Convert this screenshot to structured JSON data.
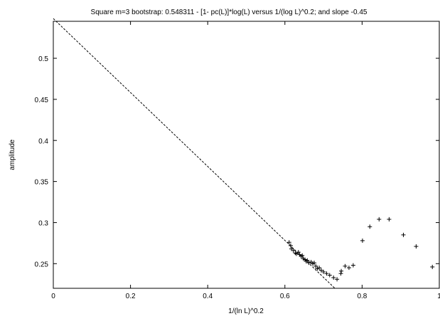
{
  "chart_data": {
    "type": "scatter",
    "title": "Square m=3 bootstrap: 0.548311 - [1- pc(L)]*log(L) versus 1/(log L)^0.2; and slope -0.45",
    "xlabel": "1/(ln L)^0.2",
    "ylabel": "amplitude",
    "xlim": [
      0,
      1
    ],
    "ylim": [
      0.22,
      0.545
    ],
    "x_ticks": [
      0,
      0.2,
      0.4,
      0.6,
      0.8,
      1
    ],
    "x_tick_labels": [
      "0",
      "0.2",
      "0.4",
      "0.6",
      "0.8",
      "1"
    ],
    "y_ticks": [
      0.25,
      0.3,
      0.35,
      0.4,
      0.45,
      0.5
    ],
    "y_tick_labels": [
      "0.25",
      "0.3",
      "0.35",
      "0.4",
      "0.45",
      "0.5"
    ],
    "grid": false,
    "series": [
      {
        "marker": "plus",
        "color": "#000000",
        "points": [
          [
            0.611,
            0.276
          ],
          [
            0.615,
            0.272
          ],
          [
            0.617,
            0.268
          ],
          [
            0.622,
            0.266
          ],
          [
            0.627,
            0.263
          ],
          [
            0.63,
            0.262
          ],
          [
            0.635,
            0.264
          ],
          [
            0.638,
            0.261
          ],
          [
            0.642,
            0.259
          ],
          [
            0.645,
            0.26
          ],
          [
            0.648,
            0.256
          ],
          [
            0.652,
            0.255
          ],
          [
            0.655,
            0.253
          ],
          [
            0.658,
            0.254
          ],
          [
            0.662,
            0.251
          ],
          [
            0.668,
            0.252
          ],
          [
            0.672,
            0.25
          ],
          [
            0.676,
            0.251
          ],
          [
            0.68,
            0.247
          ],
          [
            0.684,
            0.244
          ],
          [
            0.689,
            0.245
          ],
          [
            0.694,
            0.242
          ],
          [
            0.7,
            0.24
          ],
          [
            0.708,
            0.238
          ],
          [
            0.716,
            0.236
          ],
          [
            0.726,
            0.233
          ],
          [
            0.735,
            0.231
          ],
          [
            0.745,
            0.238
          ],
          [
            0.746,
            0.241
          ],
          [
            0.756,
            0.247
          ],
          [
            0.766,
            0.245
          ],
          [
            0.777,
            0.248
          ],
          [
            0.801,
            0.278
          ],
          [
            0.82,
            0.295
          ],
          [
            0.844,
            0.304
          ],
          [
            0.87,
            0.304
          ],
          [
            0.907,
            0.285
          ],
          [
            0.94,
            0.271
          ],
          [
            0.982,
            0.246
          ]
        ]
      }
    ],
    "fit_line": {
      "style": "dashed",
      "color": "#000000",
      "intercept": 0.548311,
      "slope": -0.45
    }
  }
}
